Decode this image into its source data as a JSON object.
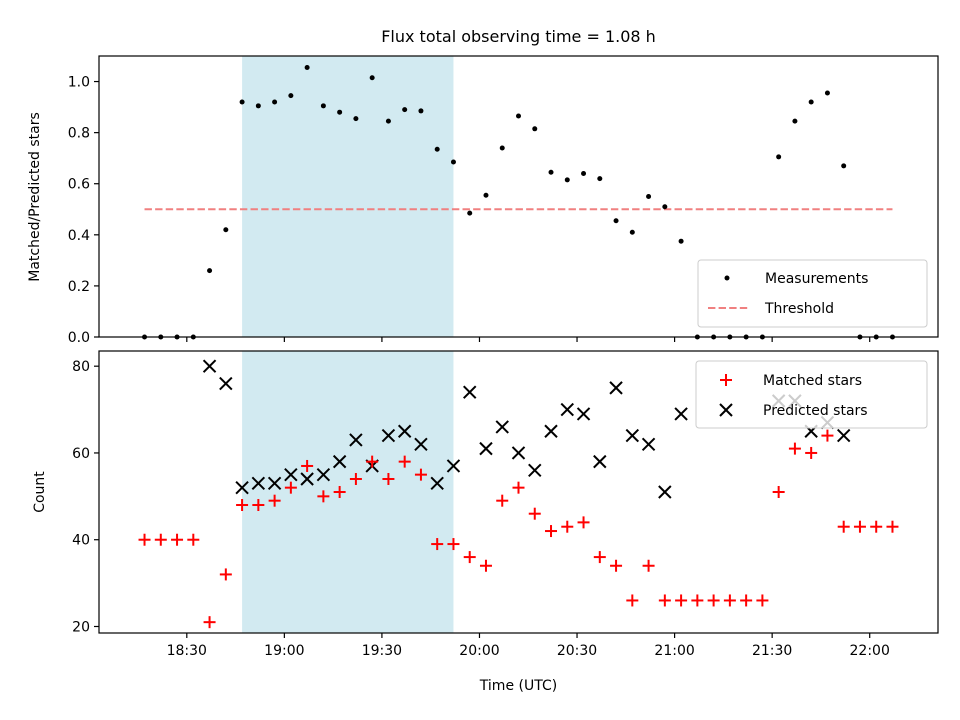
{
  "title": "Flux total observing time = 1.08 h",
  "colors": {
    "measurements": "#000000",
    "threshold": "#f08080",
    "matched": "#ff0000",
    "predicted": "#000000",
    "shade": "#add8e6"
  },
  "chart_data": [
    {
      "type": "scatter",
      "xlabel": "",
      "ylabel": "Matched/Predicted stars",
      "xlim": [
        "18:03",
        "22:21"
      ],
      "ylim": [
        0,
        1.1
      ],
      "yticks": [
        "0.0",
        "0.2",
        "0.4",
        "0.6",
        "0.8",
        "1.0"
      ],
      "xticks": [
        "18:30",
        "19:00",
        "19:30",
        "20:00",
        "20:30",
        "21:00",
        "21:30",
        "22:00"
      ],
      "shaded_region": [
        "18:47",
        "19:52"
      ],
      "threshold": 0.5,
      "legend_location": "lower right",
      "legend": [
        "Measurements",
        "Threshold"
      ],
      "series": [
        {
          "name": "Measurements",
          "x": [
            "18:17",
            "18:22",
            "18:27",
            "18:32",
            "18:37",
            "18:42",
            "18:47",
            "18:52",
            "18:57",
            "19:02",
            "19:07",
            "19:12",
            "19:17",
            "19:22",
            "19:27",
            "19:32",
            "19:37",
            "19:42",
            "19:47",
            "19:52",
            "19:57",
            "20:02",
            "20:07",
            "20:12",
            "20:17",
            "20:22",
            "20:27",
            "20:32",
            "20:37",
            "20:42",
            "20:47",
            "20:52",
            "20:57",
            "21:02",
            "21:07",
            "21:12",
            "21:17",
            "21:22",
            "21:27",
            "21:32",
            "21:37",
            "21:42",
            "21:47",
            "21:52",
            "21:57",
            "22:02",
            "22:07"
          ],
          "y": [
            0.0,
            0.0,
            0.0,
            0.0,
            0.26,
            0.42,
            0.92,
            0.905,
            0.92,
            0.945,
            1.055,
            0.905,
            0.88,
            0.855,
            1.015,
            0.845,
            0.89,
            0.885,
            0.735,
            0.685,
            0.485,
            0.555,
            0.74,
            0.865,
            0.815,
            0.645,
            0.615,
            0.64,
            0.62,
            0.455,
            0.41,
            0.55,
            0.51,
            0.375,
            0.0,
            0.0,
            0.0,
            0.0,
            0.0,
            0.705,
            0.845,
            0.92,
            0.955,
            0.67,
            0.0,
            0.0,
            0.0
          ]
        },
        {
          "name": "Threshold",
          "x": [
            "18:17",
            "22:07"
          ],
          "y": [
            0.5,
            0.5
          ]
        }
      ]
    },
    {
      "type": "scatter",
      "xlabel": "Time (UTC)",
      "ylabel": "Count",
      "xlim": [
        "18:03",
        "22:21"
      ],
      "ylim": [
        18.5,
        83.5
      ],
      "yticks": [
        "20",
        "40",
        "60",
        "80"
      ],
      "xticks": [
        "18:30",
        "19:00",
        "19:30",
        "20:00",
        "20:30",
        "21:00",
        "21:30",
        "22:00"
      ],
      "shaded_region": [
        "18:47",
        "19:52"
      ],
      "legend_location": "upper right",
      "legend": [
        "Matched stars",
        "Predicted stars"
      ],
      "series": [
        {
          "name": "Matched stars",
          "x": [
            "18:17",
            "18:22",
            "18:27",
            "18:32",
            "18:37",
            "18:42",
            "18:47",
            "18:52",
            "18:57",
            "19:02",
            "19:07",
            "19:12",
            "19:17",
            "19:22",
            "19:27",
            "19:32",
            "19:37",
            "19:42",
            "19:47",
            "19:52",
            "19:57",
            "20:02",
            "20:07",
            "20:12",
            "20:17",
            "20:22",
            "20:27",
            "20:32",
            "20:37",
            "20:42",
            "20:47",
            "20:52",
            "20:57",
            "21:02",
            "21:07",
            "21:12",
            "21:17",
            "21:22",
            "21:27",
            "21:32",
            "21:37",
            "21:42",
            "21:47",
            "21:52",
            "21:57",
            "22:02",
            "22:07"
          ],
          "y": [
            40,
            40,
            40,
            40,
            21,
            32,
            48,
            48,
            49,
            52,
            57,
            50,
            51,
            54,
            58,
            54,
            58,
            55,
            39,
            39,
            36,
            34,
            49,
            52,
            46,
            42,
            43,
            44,
            36,
            34,
            26,
            34,
            26,
            26,
            26,
            26,
            26,
            26,
            26,
            51,
            61,
            60,
            64,
            43,
            43,
            43,
            43
          ]
        },
        {
          "name": "Predicted stars",
          "x": [
            "18:37",
            "18:42",
            "18:47",
            "18:52",
            "18:57",
            "19:02",
            "19:07",
            "19:12",
            "19:17",
            "19:22",
            "19:27",
            "19:32",
            "19:37",
            "19:42",
            "19:47",
            "19:52",
            "19:57",
            "20:02",
            "20:07",
            "20:12",
            "20:17",
            "20:22",
            "20:27",
            "20:32",
            "20:37",
            "20:42",
            "20:47",
            "20:52",
            "20:57",
            "21:02",
            "21:32",
            "21:37",
            "21:42",
            "21:47",
            "21:52"
          ],
          "y": [
            80,
            76,
            52,
            53,
            53,
            55,
            54,
            55,
            58,
            63,
            57,
            64,
            65,
            62,
            53,
            57,
            74,
            61,
            66,
            60,
            56,
            65,
            70,
            69,
            58,
            75,
            64,
            62,
            51,
            69,
            72,
            72,
            65,
            67,
            64
          ]
        }
      ]
    }
  ]
}
